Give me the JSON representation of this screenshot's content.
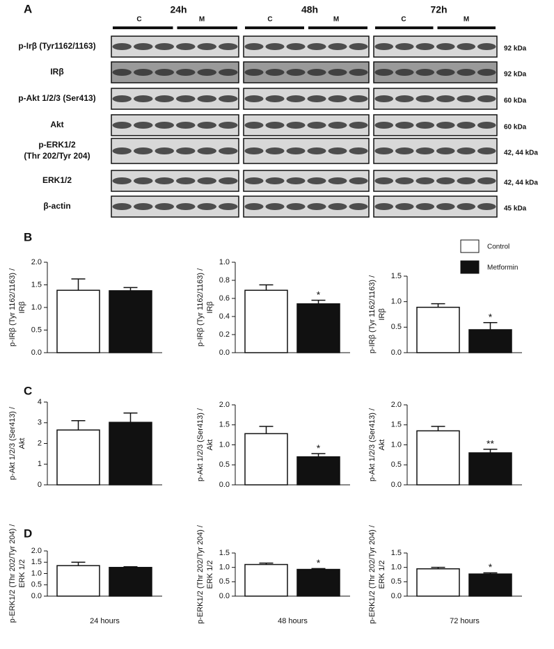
{
  "panel_labels": [
    "A",
    "B",
    "C",
    "D"
  ],
  "blot": {
    "time_points": [
      "24h",
      "48h",
      "72h"
    ],
    "groups": [
      "C",
      "M"
    ],
    "rows": [
      {
        "label": [
          "p-Irβ (Tyr1162/1163)"
        ],
        "size": "92 kDa"
      },
      {
        "label": [
          "IRβ"
        ],
        "size": "92 kDa"
      },
      {
        "label": [
          "p-Akt 1/2/3 (Ser413)"
        ],
        "size": "60 kDa"
      },
      {
        "label": [
          "Akt"
        ],
        "size": "60 kDa"
      },
      {
        "label": [
          "p-ERK1/2",
          "(Thr 202/Tyr 204)"
        ],
        "size": "42, 44 kDa"
      },
      {
        "label": [
          "ERK1/2"
        ],
        "size": "42, 44  kDa"
      },
      {
        "label": [
          "β-actin"
        ],
        "size": "45 kDa"
      }
    ]
  },
  "legend": [
    {
      "name": "Control",
      "color": "#ffffff"
    },
    {
      "name": "Metformin",
      "color": "#111111"
    }
  ],
  "chart_data": [
    {
      "type": "bar",
      "ylabel": [
        "p-IRβ (Tyr 1162/1163) /",
        "IRβ"
      ],
      "values": [
        1.38,
        1.37
      ],
      "errors": [
        0.25,
        0.07
      ],
      "stars": [
        null,
        null
      ],
      "ylim": [
        0,
        2
      ],
      "yticks": [
        {
          "value": 0,
          "label": "0.0"
        },
        0.5,
        {
          "value": 1,
          "label": "1.0"
        },
        1.5,
        {
          "value": 2,
          "label": "2.0"
        }
      ]
    },
    {
      "type": "bar",
      "ylabel": [
        "p-IRβ (Tyr 1162/1163) /",
        "IRβ"
      ],
      "values": [
        0.69,
        0.54
      ],
      "errors": [
        0.06,
        0.04
      ],
      "stars": [
        null,
        "*"
      ],
      "ylim": [
        0,
        1
      ],
      "yticks": [
        {
          "value": 0,
          "label": "0.0"
        },
        0.2,
        0.4,
        0.6,
        0.8,
        {
          "value": 1,
          "label": "1.0"
        }
      ]
    },
    {
      "type": "bar",
      "ylabel": [
        "p-IRβ (Tyr 1162/1163) /",
        "IRβ"
      ],
      "values": [
        0.89,
        0.45
      ],
      "errors": [
        0.07,
        0.14
      ],
      "stars": [
        null,
        "*"
      ],
      "ylim": [
        0,
        1.5
      ],
      "yticks": [
        {
          "value": 0,
          "label": "0.0"
        },
        0.5,
        {
          "value": 1,
          "label": "1.0"
        },
        1.5
      ]
    },
    {
      "type": "bar",
      "ylabel": [
        "p-Akt 1/2/3 (Ser413) /",
        "Akt"
      ],
      "values": [
        2.65,
        3.02
      ],
      "errors": [
        0.45,
        0.45
      ],
      "stars": [
        null,
        null
      ],
      "ylim": [
        0,
        4
      ],
      "yticks": [
        0,
        1,
        2,
        3,
        4
      ]
    },
    {
      "type": "bar",
      "ylabel": [
        "p-Akt 1/2/3 (Ser413) /",
        "Akt"
      ],
      "values": [
        1.28,
        0.7
      ],
      "errors": [
        0.18,
        0.08
      ],
      "stars": [
        null,
        "*"
      ],
      "ylim": [
        0,
        2
      ],
      "yticks": [
        {
          "value": 0,
          "label": "0.0"
        },
        0.5,
        {
          "value": 1,
          "label": "1.0"
        },
        1.5,
        {
          "value": 2,
          "label": "2.0"
        }
      ]
    },
    {
      "type": "bar",
      "ylabel": [
        "p-Akt 1/2/3 (Ser413) /",
        "Akt"
      ],
      "values": [
        1.35,
        0.8
      ],
      "errors": [
        0.11,
        0.09
      ],
      "stars": [
        null,
        "**"
      ],
      "ylim": [
        0,
        2
      ],
      "yticks": [
        {
          "value": 0,
          "label": "0.0"
        },
        0.5,
        {
          "value": 1,
          "label": "1.0"
        },
        1.5,
        {
          "value": 2,
          "label": "2.0"
        }
      ]
    },
    {
      "type": "bar",
      "ylabel": [
        "p-ERK1/2 (Thr 202/Tyr 204) /",
        "ERK 1/2"
      ],
      "xlabel": "24 hours",
      "values": [
        1.35,
        1.27
      ],
      "errors": [
        0.15,
        0.03
      ],
      "stars": [
        null,
        null
      ],
      "ylim": [
        0,
        2
      ],
      "yticks": [
        {
          "value": 0,
          "label": "0.0"
        },
        0.5,
        {
          "value": 1,
          "label": "1.0"
        },
        1.5,
        {
          "value": 2,
          "label": "2.0"
        }
      ]
    },
    {
      "type": "bar",
      "ylabel": [
        "p-ERK1/2 (Thr 202/Tyr 204) /",
        "ERK 1/2"
      ],
      "xlabel": "48 hours",
      "values": [
        1.1,
        0.93
      ],
      "errors": [
        0.05,
        0.03
      ],
      "stars": [
        null,
        "*"
      ],
      "ylim": [
        0,
        1.5
      ],
      "yticks": [
        {
          "value": 0,
          "label": "0.0"
        },
        0.5,
        {
          "value": 1,
          "label": "1.0"
        },
        1.5
      ]
    },
    {
      "type": "bar",
      "ylabel": [
        "p-ERK1/2 (Thr 202/Tyr 204) /",
        "ERK 1/2"
      ],
      "xlabel": "72 hours",
      "values": [
        0.95,
        0.77
      ],
      "errors": [
        0.05,
        0.04
      ],
      "stars": [
        null,
        "*"
      ],
      "ylim": [
        0,
        1.5
      ],
      "yticks": [
        {
          "value": 0,
          "label": "0.0"
        },
        0.5,
        {
          "value": 1,
          "label": "1.0"
        },
        1.5
      ]
    }
  ]
}
